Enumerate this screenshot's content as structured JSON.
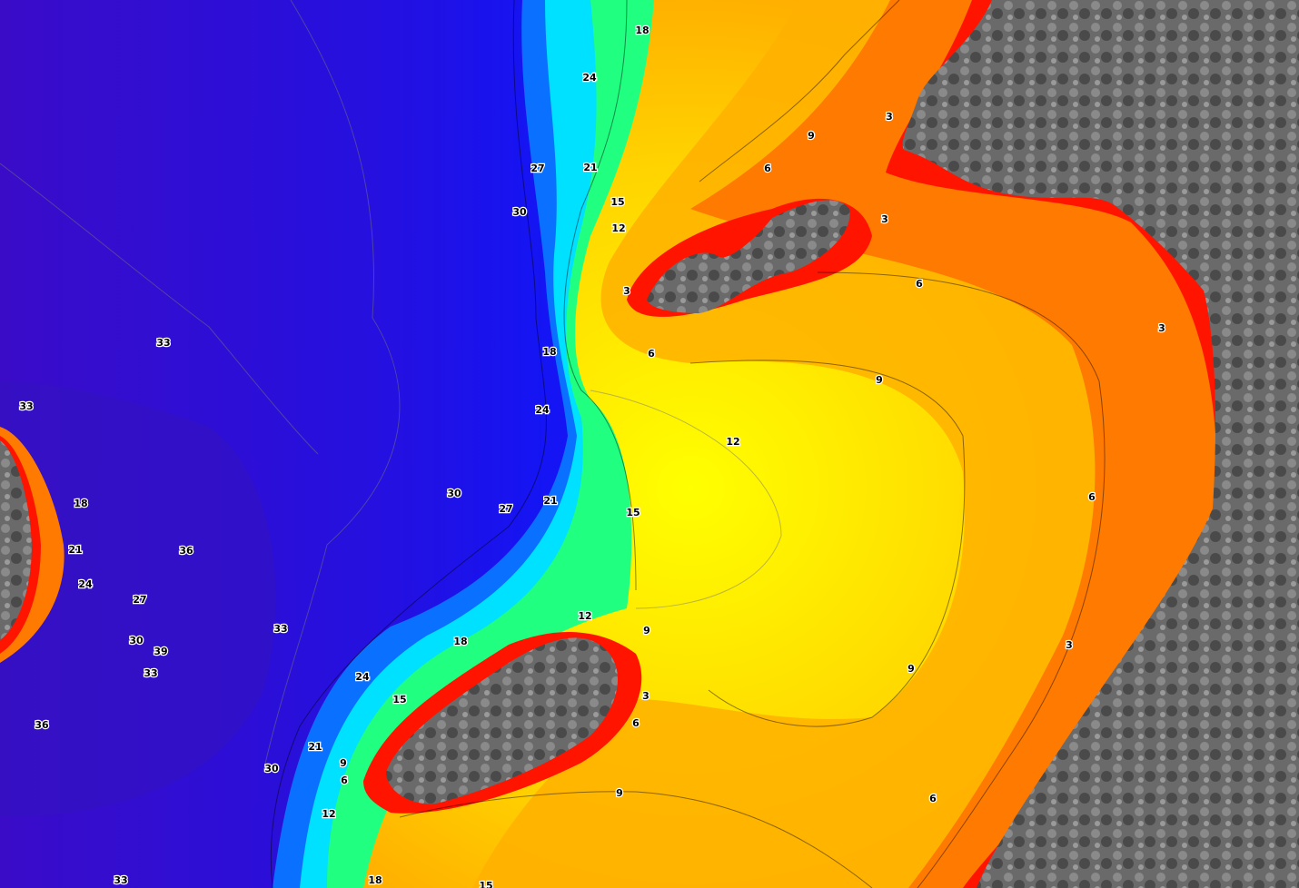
{
  "contour_labels": [
    18,
    24,
    3,
    9,
    6,
    27,
    21,
    15,
    30,
    12,
    3,
    3,
    6,
    3,
    33,
    18,
    6,
    9,
    33,
    24,
    12,
    30,
    6,
    18,
    27,
    21,
    15,
    21,
    36,
    24,
    27,
    12,
    9,
    33,
    30,
    39,
    18,
    3,
    33,
    24,
    9,
    3,
    15,
    6,
    36,
    21,
    9,
    30,
    6,
    9,
    6,
    12,
    33,
    18,
    15
  ]
}
